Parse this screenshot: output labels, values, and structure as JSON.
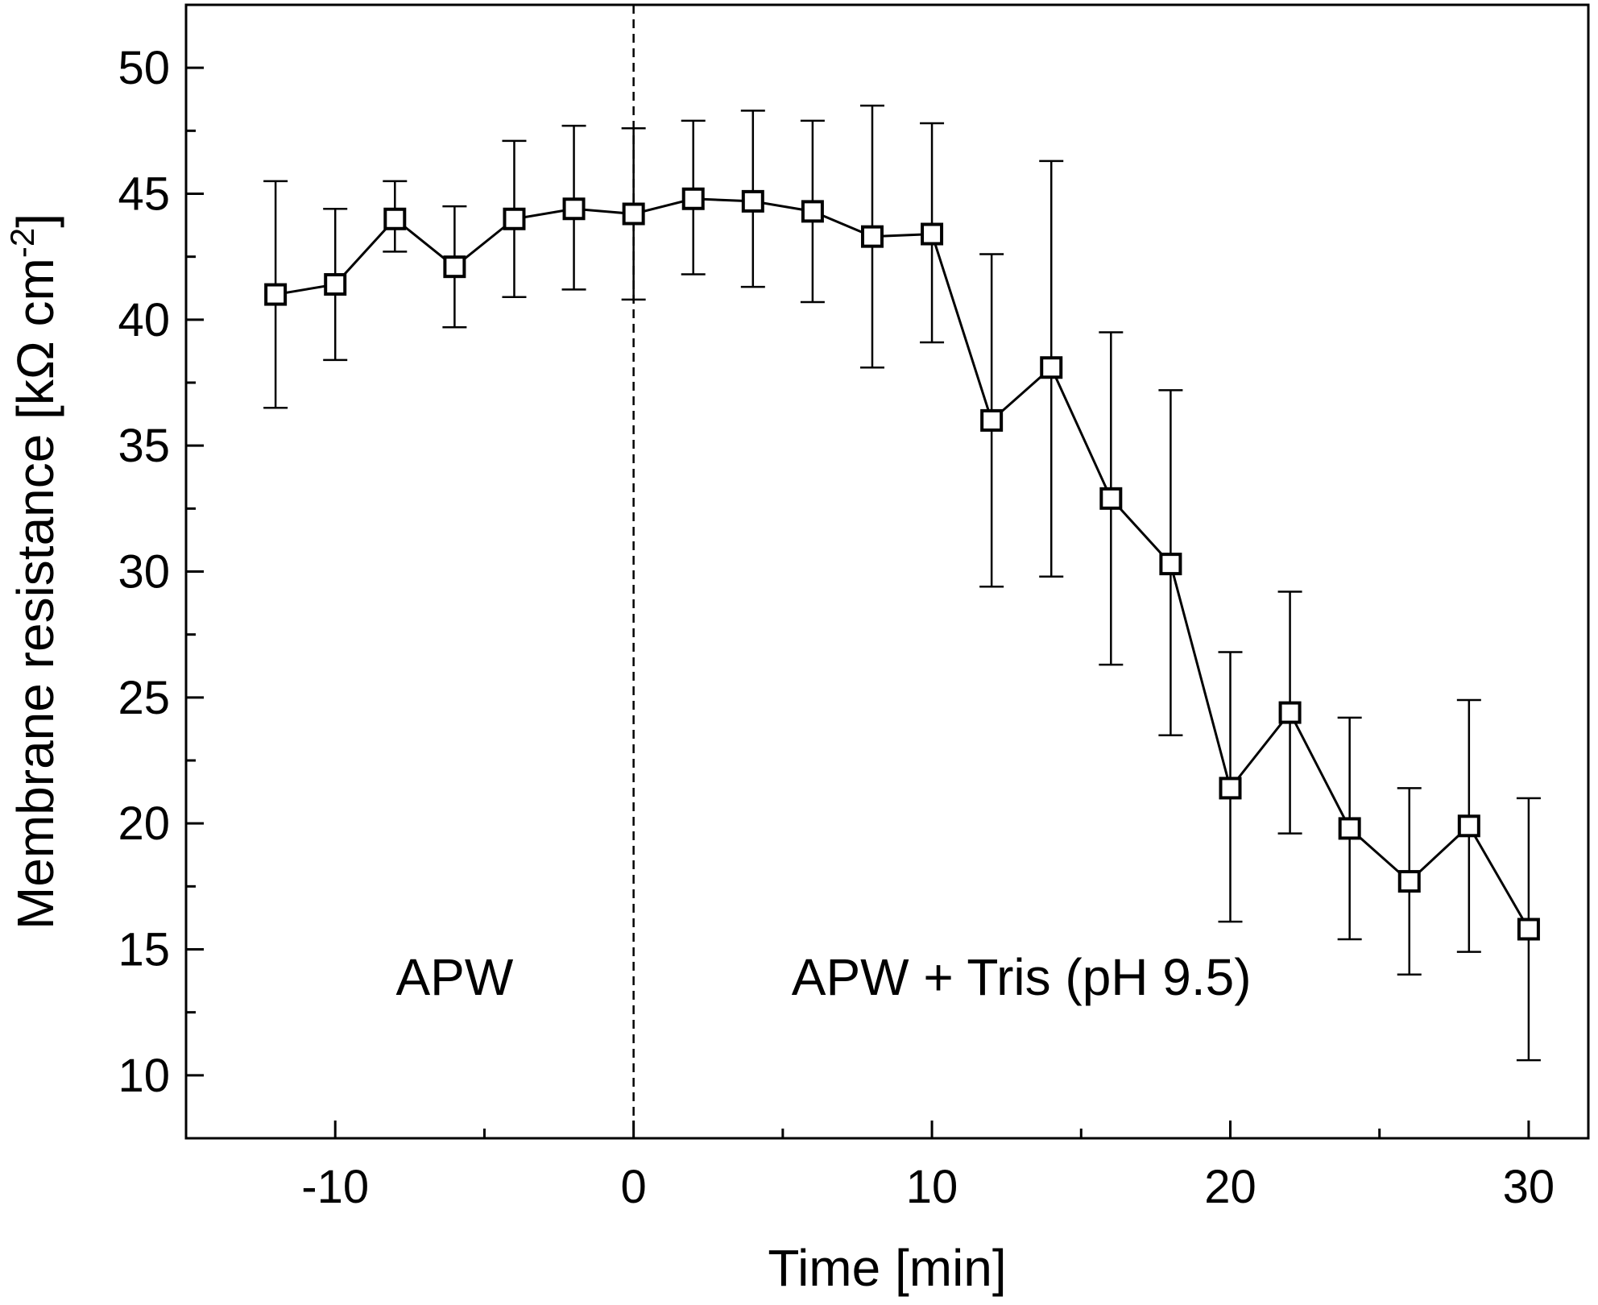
{
  "chart_data": {
    "type": "scatter",
    "title": "",
    "xlabel": "Time [min]",
    "ylabel_main": "Membrane resistance [kΩ cm",
    "ylabel_sup": "-2",
    "ylabel_close": "]",
    "xlim": [
      -15,
      32
    ],
    "ylim": [
      7.5,
      52.5
    ],
    "x_ticks": [
      -10,
      0,
      10,
      20,
      30
    ],
    "x_tick_labels": [
      "-10",
      "0",
      "10",
      "20",
      "30"
    ],
    "x_minor_ticks": [
      -15,
      -5,
      5,
      15,
      25
    ],
    "y_ticks": [
      10,
      15,
      20,
      25,
      30,
      35,
      40,
      45,
      50
    ],
    "y_tick_labels": [
      "10",
      "15",
      "20",
      "25",
      "30",
      "35",
      "40",
      "45",
      "50"
    ],
    "y_minor_ticks": [
      12.5,
      17.5,
      22.5,
      27.5,
      32.5,
      37.5,
      42.5,
      47.5
    ],
    "grid": false,
    "legend": null,
    "vline_x": 0,
    "annotations": [
      {
        "text": "APW",
        "x": -6,
        "y": 13.2
      },
      {
        "text": "APW + Tris (pH 9.5)",
        "x": 13,
        "y": 13.2
      }
    ],
    "series": [
      {
        "marker": "open-square",
        "x": [
          -12,
          -10,
          -8,
          -6,
          -4,
          -2,
          0,
          2,
          4,
          6,
          8,
          10,
          12,
          14,
          16,
          18,
          20,
          22,
          24,
          26,
          28,
          30
        ],
        "y": [
          41.0,
          41.4,
          44.0,
          42.1,
          44.0,
          44.4,
          44.2,
          44.8,
          44.7,
          44.3,
          43.3,
          43.4,
          36.0,
          38.1,
          32.9,
          30.3,
          21.4,
          24.4,
          19.8,
          17.7,
          19.9,
          15.8
        ],
        "y_upper": [
          45.5,
          44.4,
          45.5,
          44.5,
          47.1,
          47.7,
          47.6,
          47.9,
          48.3,
          47.9,
          48.5,
          47.8,
          42.6,
          46.3,
          39.5,
          37.2,
          26.8,
          29.2,
          24.2,
          21.4,
          24.9,
          21.0
        ],
        "y_lower": [
          36.5,
          38.4,
          42.7,
          39.7,
          40.9,
          41.2,
          40.8,
          41.8,
          41.3,
          40.7,
          38.1,
          39.1,
          29.4,
          29.8,
          26.3,
          23.5,
          16.1,
          19.6,
          15.4,
          14.0,
          14.9,
          10.6
        ]
      }
    ]
  }
}
